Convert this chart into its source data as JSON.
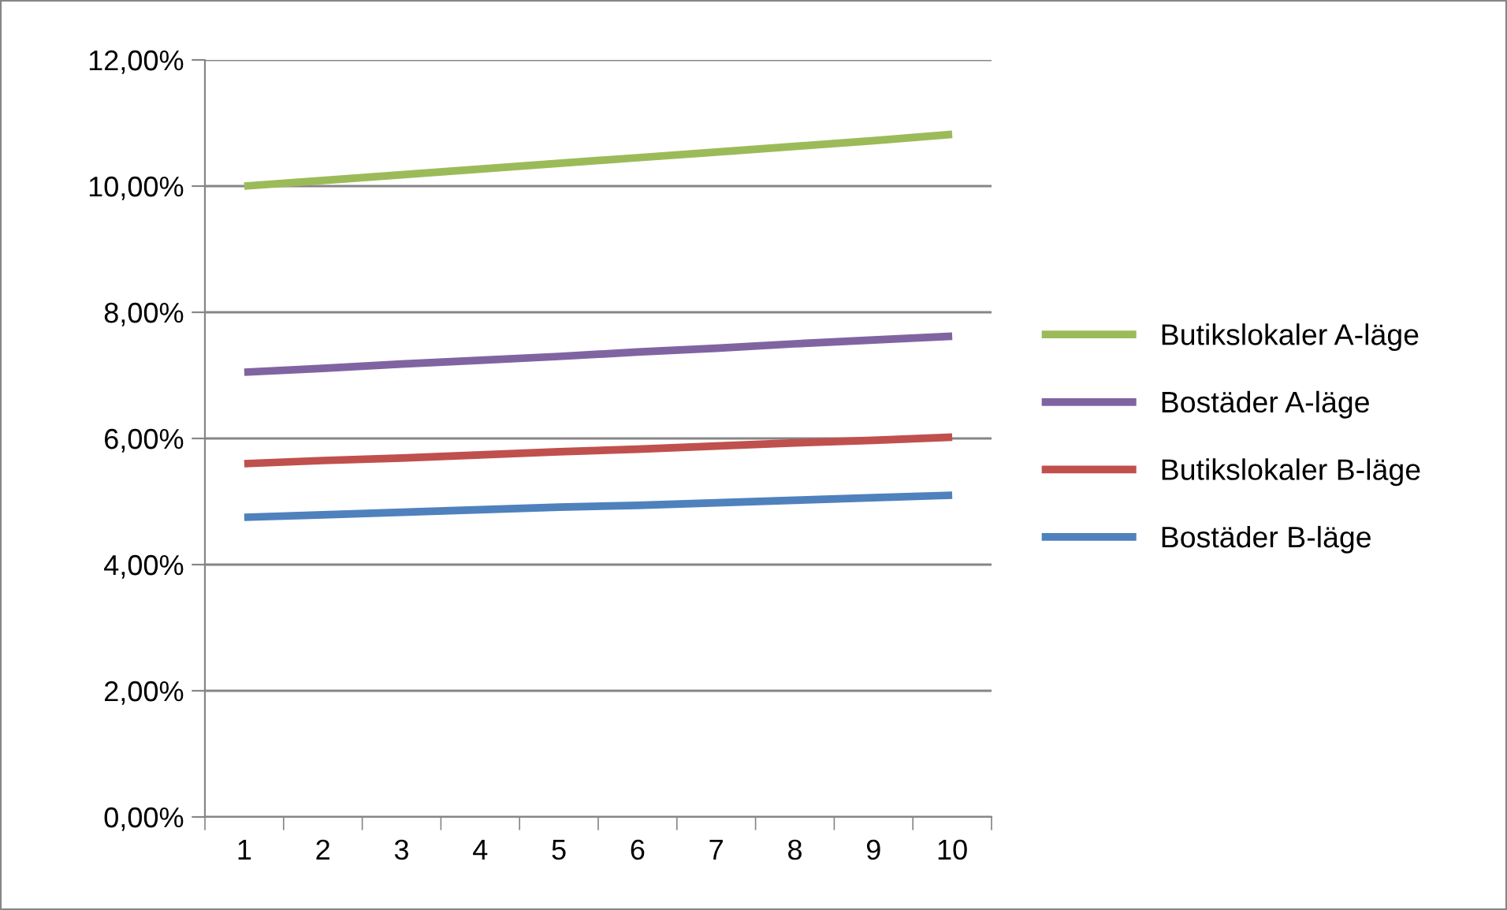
{
  "chart_data": {
    "type": "line",
    "categories": [
      "1",
      "2",
      "3",
      "4",
      "5",
      "6",
      "7",
      "8",
      "9",
      "10"
    ],
    "series": [
      {
        "name": "Butikslokaler A-läge",
        "color": "#9bbb59",
        "values": [
          10.0,
          10.09,
          10.18,
          10.27,
          10.36,
          10.45,
          10.54,
          10.63,
          10.72,
          10.82
        ]
      },
      {
        "name": "Bostäder A-läge",
        "color": "#8064a2",
        "values": [
          7.05,
          7.11,
          7.18,
          7.24,
          7.3,
          7.37,
          7.43,
          7.5,
          7.56,
          7.62
        ]
      },
      {
        "name": "Butikslokaler B-läge",
        "color": "#c0504d",
        "values": [
          5.6,
          5.65,
          5.69,
          5.74,
          5.79,
          5.83,
          5.88,
          5.93,
          5.97,
          6.02
        ]
      },
      {
        "name": "Bostäder B-läge",
        "color": "#4f81bd",
        "values": [
          4.75,
          4.79,
          4.83,
          4.87,
          4.91,
          4.94,
          4.98,
          5.02,
          5.06,
          5.1
        ]
      }
    ],
    "ylim": [
      0,
      12
    ],
    "yticks": [
      {
        "value": 0,
        "label": "0,00%"
      },
      {
        "value": 2,
        "label": "2,00%"
      },
      {
        "value": 4,
        "label": "4,00%"
      },
      {
        "value": 6,
        "label": "6,00%"
      },
      {
        "value": 8,
        "label": "8,00%"
      },
      {
        "value": 10,
        "label": "10,00%"
      },
      {
        "value": 12,
        "label": "12,00%"
      }
    ],
    "grid": "y",
    "legend": "right",
    "marker": "none",
    "line_style": "solid"
  }
}
